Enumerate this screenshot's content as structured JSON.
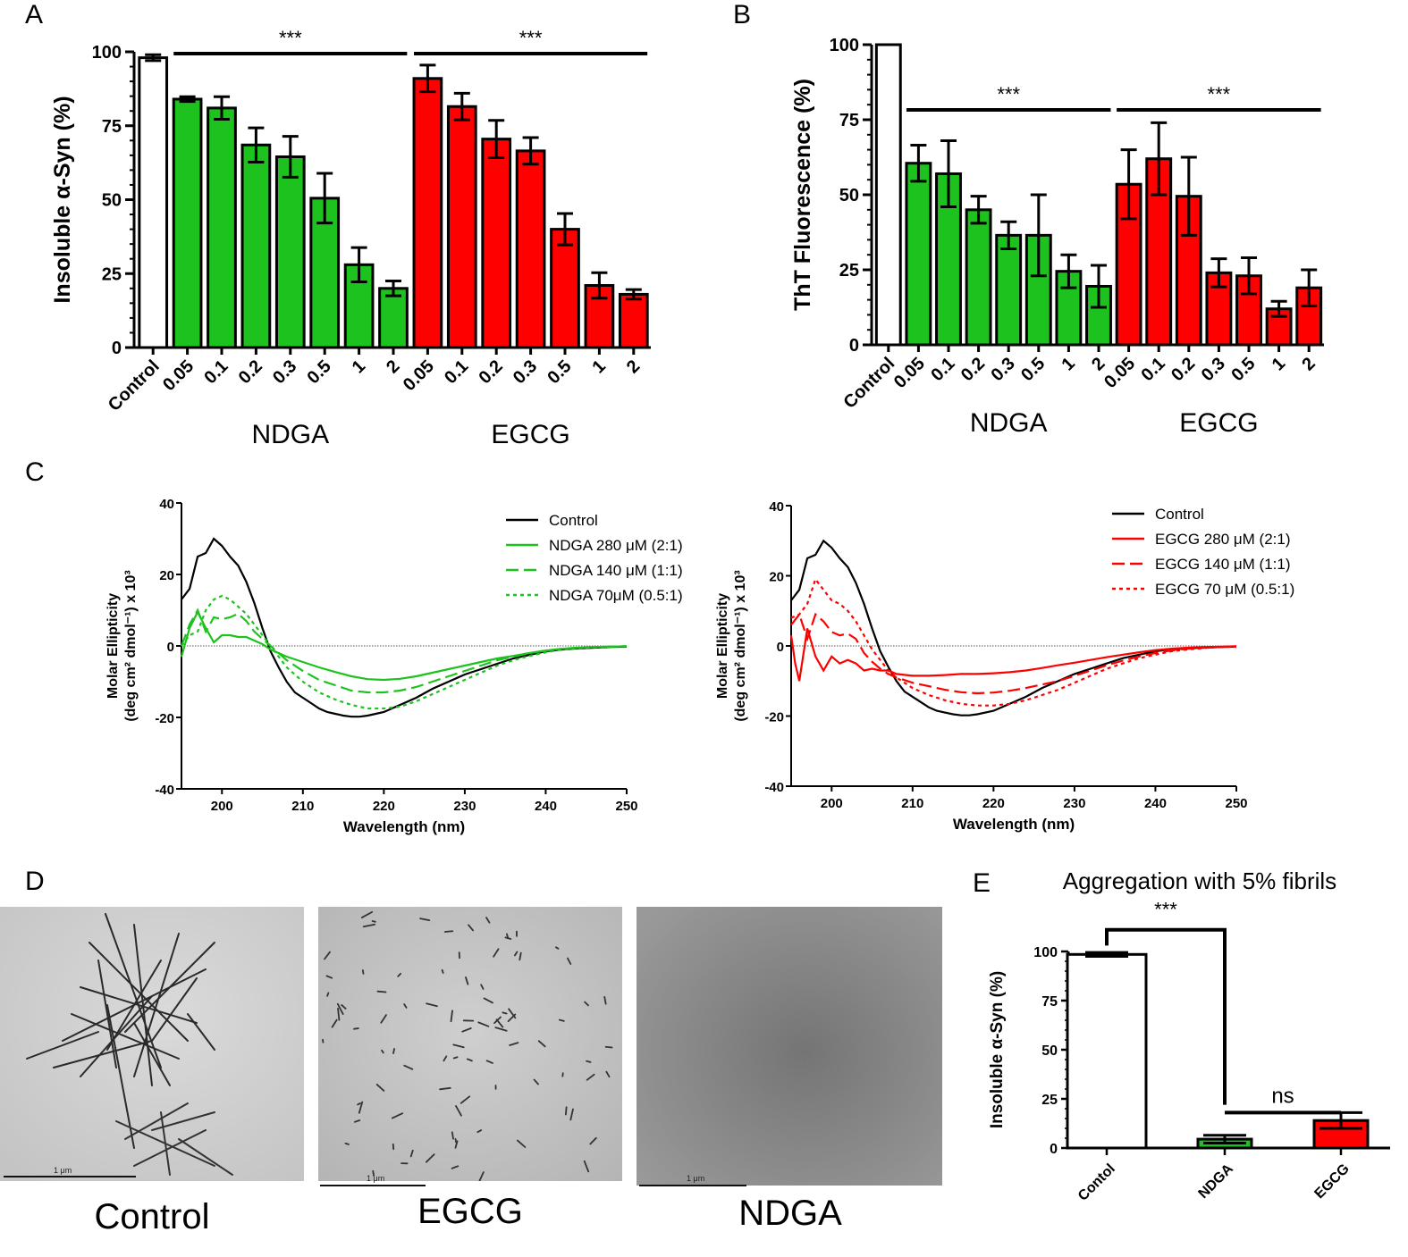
{
  "panel_labels": [
    "A",
    "B",
    "C",
    "D",
    "E"
  ],
  "colors": {
    "control": "#ffffff",
    "ndga": "#1ec21e",
    "egcg": "#ff0000",
    "axis": "#000000",
    "zero": "#555555"
  },
  "chart_data": [
    {
      "id": "A",
      "type": "bar",
      "title": "",
      "ylabel": "Insoluble α-Syn (%)",
      "ylim": [
        0,
        100
      ],
      "yticks": [
        0,
        25,
        50,
        75,
        100
      ],
      "groups": [
        "NDGA",
        "EGCG"
      ],
      "categories": [
        "Control",
        "0.05",
        "0.1",
        "0.2",
        "0.3",
        "0.5",
        "1",
        "2",
        "0.05",
        "0.1",
        "0.2",
        "0.3",
        "0.5",
        "1",
        "2"
      ],
      "values": [
        98,
        84,
        81,
        68.5,
        64.5,
        50.5,
        28,
        20,
        91,
        81.5,
        70.5,
        66.5,
        40,
        21,
        18
      ],
      "errors": [
        1,
        0.8,
        3.8,
        5.8,
        6.9,
        8.4,
        5.8,
        2.5,
        4.5,
        4.5,
        6.3,
        4.5,
        5.3,
        4.3,
        1.6
      ],
      "series_of": [
        "control",
        "ndga",
        "ndga",
        "ndga",
        "ndga",
        "ndga",
        "ndga",
        "ndga",
        "egcg",
        "egcg",
        "egcg",
        "egcg",
        "egcg",
        "egcg",
        "egcg"
      ],
      "significance": [
        {
          "from": 1,
          "to": 7,
          "label": "***"
        },
        {
          "from": 8,
          "to": 14,
          "label": "***"
        }
      ]
    },
    {
      "id": "B",
      "type": "bar",
      "title": "",
      "ylabel": "ThT Fluorescence (%)",
      "ylim": [
        0,
        100
      ],
      "yticks": [
        0,
        25,
        50,
        75,
        100
      ],
      "groups": [
        "NDGA",
        "EGCG"
      ],
      "categories": [
        "Control",
        "0.05",
        "0.1",
        "0.2",
        "0.3",
        "0.5",
        "1",
        "2",
        "0.05",
        "0.1",
        "0.2",
        "0.3",
        "0.5",
        "1",
        "2"
      ],
      "values": [
        100,
        60.5,
        57,
        45,
        36.5,
        36.5,
        24.5,
        19.5,
        53.5,
        62,
        49.5,
        24,
        23,
        12,
        19
      ],
      "errors": [
        0,
        6,
        11,
        4.5,
        4.5,
        13.5,
        5.5,
        7,
        11.5,
        12,
        13,
        4.7,
        6,
        2.5,
        6
      ],
      "series_of": [
        "control",
        "ndga",
        "ndga",
        "ndga",
        "ndga",
        "ndga",
        "ndga",
        "ndga",
        "egcg",
        "egcg",
        "egcg",
        "egcg",
        "egcg",
        "egcg",
        "egcg"
      ],
      "significance": [
        {
          "from": 1,
          "to": 7,
          "label": "***"
        },
        {
          "from": 8,
          "to": 14,
          "label": "***"
        }
      ]
    },
    {
      "id": "C-left",
      "type": "line",
      "xlabel": "Wavelength (nm)",
      "ylabel_lines": [
        "Molar Ellipticity",
        "(deg cm² dmol⁻¹) x 10³"
      ],
      "xlim": [
        195,
        250
      ],
      "ylim": [
        -40,
        40
      ],
      "xticks": [
        200,
        210,
        220,
        230,
        240,
        250
      ],
      "yticks": [
        -40,
        -20,
        0,
        20,
        40
      ],
      "series": [
        {
          "name": "Control",
          "color": "#000000",
          "dash": "",
          "x": [
            195,
            196,
            197,
            198,
            199,
            200,
            201,
            202,
            203,
            204,
            205,
            206,
            207,
            208,
            209,
            210,
            211,
            212,
            213,
            214,
            215,
            216,
            217,
            218,
            219,
            220,
            222,
            224,
            226,
            228,
            230,
            232,
            234,
            236,
            238,
            240,
            242,
            244,
            246,
            248,
            250
          ],
          "y": [
            13,
            16,
            25,
            26,
            30,
            28,
            25,
            22.5,
            18,
            12,
            5,
            -1.5,
            -6,
            -10,
            -13,
            -14.5,
            -16,
            -17.5,
            -18.5,
            -19,
            -19.5,
            -19.8,
            -19.8,
            -19.5,
            -19,
            -18.5,
            -16.5,
            -14.5,
            -12,
            -10,
            -8,
            -6.5,
            -5,
            -3.5,
            -2.5,
            -1.5,
            -1,
            -0.7,
            -0.5,
            -0.3,
            -0.2
          ]
        },
        {
          "name": "NDGA 280 μM (2:1)",
          "color": "#1ec21e",
          "dash": "",
          "x": [
            195,
            196,
            197,
            198,
            199,
            200,
            201,
            202,
            203,
            204,
            205,
            206,
            207,
            208,
            210,
            212,
            214,
            216,
            218,
            220,
            222,
            224,
            226,
            228,
            230,
            232,
            234,
            236,
            238,
            240,
            242,
            244,
            246,
            248,
            250
          ],
          "y": [
            -3,
            5,
            9.5,
            5,
            1,
            3,
            3,
            2.5,
            2.5,
            1.5,
            0.5,
            -1,
            -2,
            -3,
            -4.5,
            -6,
            -7.3,
            -8.5,
            -9.3,
            -9.5,
            -9.2,
            -8.5,
            -7.5,
            -6.5,
            -5.5,
            -4.5,
            -3.5,
            -2.8,
            -2,
            -1.3,
            -0.8,
            -0.5,
            -0.3,
            -0.2,
            -0.1
          ]
        },
        {
          "name": "NDGA 140 μM (1:1)",
          "color": "#1ec21e",
          "dash": "14,6",
          "x": [
            195,
            196,
            197,
            198,
            199,
            200,
            201,
            202,
            203,
            204,
            205,
            206,
            207,
            208,
            210,
            212,
            214,
            216,
            218,
            220,
            222,
            224,
            226,
            228,
            230,
            232,
            234,
            236,
            238,
            240,
            242,
            244,
            246,
            248,
            250
          ],
          "y": [
            0,
            6,
            10,
            4,
            8,
            7.5,
            8,
            9,
            7,
            4,
            2,
            0,
            -2,
            -4,
            -7,
            -9.5,
            -11,
            -12.5,
            -13,
            -13,
            -12.5,
            -11.5,
            -10,
            -8.5,
            -7,
            -5.5,
            -4,
            -3,
            -2,
            -1.3,
            -0.8,
            -0.5,
            -0.3,
            -0.2,
            -0.1
          ]
        },
        {
          "name": "NDGA 70μM (0.5:1)",
          "color": "#1ec21e",
          "dash": "4,4",
          "x": [
            195,
            196,
            197,
            198,
            199,
            200,
            201,
            202,
            203,
            204,
            205,
            206,
            207,
            208,
            210,
            212,
            214,
            216,
            218,
            220,
            222,
            224,
            226,
            228,
            230,
            232,
            234,
            236,
            238,
            240,
            242,
            244,
            246,
            248,
            250
          ],
          "y": [
            0,
            3,
            4,
            10,
            13,
            14,
            13,
            11,
            9,
            6,
            3,
            0,
            -3,
            -6,
            -10,
            -13,
            -15,
            -16.5,
            -17.5,
            -17.5,
            -17,
            -15.5,
            -13.5,
            -11.5,
            -9.5,
            -7.5,
            -5.5,
            -4,
            -2.8,
            -1.8,
            -1,
            -0.6,
            -0.4,
            -0.2,
            -0.1
          ]
        }
      ]
    },
    {
      "id": "C-right",
      "type": "line",
      "xlabel": "Wavelength (nm)",
      "ylabel_lines": [
        "Molar Ellipticity",
        "(deg cm² dmol⁻¹) x 10³"
      ],
      "xlim": [
        195,
        250
      ],
      "ylim": [
        -40,
        40
      ],
      "xticks": [
        200,
        210,
        220,
        230,
        240,
        250
      ],
      "yticks": [
        -40,
        -20,
        0,
        20,
        40
      ],
      "series": [
        {
          "name": "Control",
          "color": "#000000",
          "dash": "",
          "x": [
            195,
            196,
            197,
            198,
            199,
            200,
            201,
            202,
            203,
            204,
            205,
            206,
            207,
            208,
            209,
            210,
            211,
            212,
            213,
            214,
            215,
            216,
            217,
            218,
            219,
            220,
            222,
            224,
            226,
            228,
            230,
            232,
            234,
            236,
            238,
            240,
            242,
            244,
            246,
            248,
            250
          ],
          "y": [
            13,
            16,
            25,
            26,
            30,
            28,
            25,
            22.5,
            18,
            12,
            5,
            -1.5,
            -6,
            -10,
            -13,
            -14.5,
            -16,
            -17.5,
            -18.5,
            -19,
            -19.5,
            -19.8,
            -19.8,
            -19.5,
            -19,
            -18.5,
            -16.5,
            -14.5,
            -12,
            -10,
            -8,
            -6.5,
            -5,
            -3.5,
            -2.5,
            -1.5,
            -1,
            -0.7,
            -0.5,
            -0.3,
            -0.2
          ]
        },
        {
          "name": "EGCG 280 μM (2:1)",
          "color": "#ff0000",
          "dash": "",
          "x": [
            195,
            195.5,
            196,
            197,
            198,
            199,
            200,
            201,
            202,
            203,
            204,
            205,
            206,
            207,
            208,
            210,
            212,
            214,
            216,
            218,
            220,
            222,
            224,
            226,
            228,
            230,
            232,
            234,
            236,
            238,
            240,
            242,
            244,
            246,
            248,
            250
          ],
          "y": [
            3,
            -5,
            -10,
            5,
            -3,
            -7,
            -3,
            -5,
            -4,
            -5,
            -7,
            -6.5,
            -7,
            -7,
            -8,
            -8.5,
            -8.5,
            -8.3,
            -8,
            -8,
            -7.8,
            -7.5,
            -7,
            -6.3,
            -5.5,
            -4.8,
            -4,
            -3.2,
            -2.5,
            -1.8,
            -1.2,
            -0.8,
            -0.5,
            -0.3,
            -0.2,
            -0.1
          ]
        },
        {
          "name": "EGCG 140 μM (1:1)",
          "color": "#ff0000",
          "dash": "14,6",
          "x": [
            195,
            196,
            197,
            198,
            199,
            200,
            201,
            202,
            203,
            204,
            205,
            206,
            207,
            208,
            210,
            212,
            214,
            216,
            218,
            220,
            222,
            224,
            226,
            228,
            230,
            232,
            234,
            236,
            238,
            240,
            242,
            244,
            246,
            248,
            250
          ],
          "y": [
            6,
            9,
            2,
            9,
            7,
            4,
            3,
            3.5,
            2,
            -2,
            -4.5,
            -6.5,
            -8,
            -9,
            -10.5,
            -11.5,
            -12.5,
            -13.2,
            -13.5,
            -13.3,
            -12.8,
            -12,
            -11,
            -10,
            -8.5,
            -7,
            -5.5,
            -4.2,
            -3,
            -2,
            -1.3,
            -0.8,
            -0.5,
            -0.3,
            -0.1
          ]
        },
        {
          "name": "EGCG 70 μM (0.5:1)",
          "color": "#ff0000",
          "dash": "4,4",
          "x": [
            195,
            196,
            197,
            198,
            199,
            200,
            201,
            202,
            203,
            204,
            205,
            206,
            207,
            208,
            210,
            212,
            214,
            216,
            218,
            220,
            222,
            224,
            226,
            228,
            230,
            232,
            234,
            236,
            238,
            240,
            242,
            244,
            246,
            248,
            250
          ],
          "y": [
            8,
            9,
            12,
            19,
            16,
            13,
            12,
            10,
            7,
            3,
            -1,
            -4,
            -7,
            -9,
            -12,
            -14,
            -15.5,
            -16.5,
            -17,
            -17,
            -16.5,
            -15.5,
            -14,
            -12.5,
            -10.5,
            -8.5,
            -6.5,
            -5,
            -3.5,
            -2.5,
            -1.5,
            -1,
            -0.6,
            -0.3,
            -0.2
          ]
        }
      ]
    },
    {
      "id": "E",
      "type": "bar",
      "title": "Aggregation with 5% fibrils",
      "ylabel": "Insoluble α-Syn (%)",
      "ylim": [
        0,
        100
      ],
      "yticks": [
        0,
        25,
        50,
        75,
        100
      ],
      "categories": [
        "Contol",
        "NDGA",
        "EGCG"
      ],
      "values": [
        98.5,
        4.5,
        14
      ],
      "errors": [
        1,
        2,
        4
      ],
      "series_of": [
        "control",
        "ndga",
        "egcg"
      ],
      "significance": [
        {
          "label": "***"
        },
        {
          "label": "ns"
        }
      ]
    }
  ],
  "tem": {
    "captions": [
      "Control",
      "EGCG",
      "NDGA"
    ],
    "scale_label": "1 μm"
  }
}
